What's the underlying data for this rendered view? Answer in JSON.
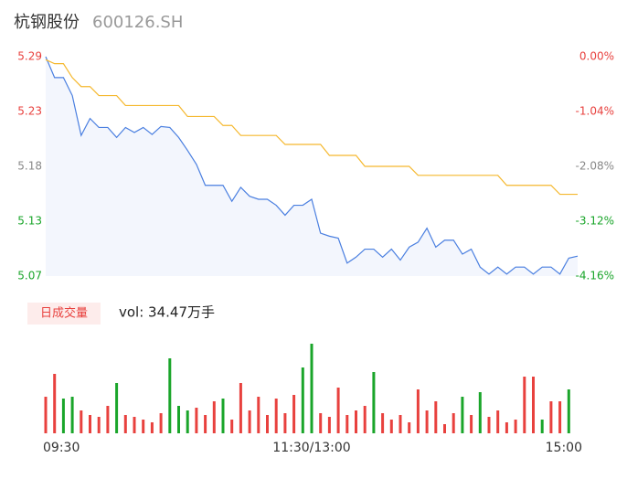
{
  "header": {
    "name": "杭钢股份",
    "code": "600126.SH"
  },
  "chart_data": [
    {
      "type": "line",
      "x": [
        0,
        4,
        8,
        12,
        16,
        20,
        24,
        28,
        32,
        36,
        40,
        44,
        48,
        52,
        56,
        60,
        64,
        68,
        72,
        76,
        80,
        84,
        88,
        92,
        96,
        100,
        104,
        108,
        112,
        116,
        120,
        124,
        128,
        132,
        136,
        140,
        144,
        148,
        152,
        156,
        160,
        164,
        168,
        172,
        176,
        180,
        184,
        188,
        192,
        196,
        200,
        204,
        208,
        212,
        216,
        220,
        224,
        228,
        232,
        236,
        240
      ],
      "xlim": [
        0,
        240
      ],
      "series": [
        {
          "color": "#4a7fe0",
          "values": [
            5.29,
            5.269,
            5.269,
            5.251,
            5.211,
            5.228,
            5.219,
            5.219,
            5.209,
            5.219,
            5.214,
            5.219,
            5.212,
            5.22,
            5.219,
            5.209,
            5.196,
            5.182,
            5.161,
            5.161,
            5.161,
            5.145,
            5.159,
            5.15,
            5.147,
            5.147,
            5.141,
            5.131,
            5.141,
            5.141,
            5.147,
            5.113,
            5.11,
            5.108,
            5.083,
            5.089,
            5.097,
            5.097,
            5.089,
            5.097,
            5.086,
            5.099,
            5.104,
            5.118,
            5.099,
            5.106,
            5.106,
            5.092,
            5.097,
            5.079,
            5.072,
            5.079,
            5.072,
            5.079,
            5.079,
            5.072,
            5.079,
            5.079,
            5.072,
            5.088,
            5.09
          ]
        },
        {
          "color": "#f5b82e",
          "values": [
            5.287,
            5.283,
            5.283,
            5.269,
            5.26,
            5.26,
            5.251,
            5.251,
            5.251,
            5.241,
            5.241,
            5.241,
            5.241,
            5.241,
            5.241,
            5.241,
            5.23,
            5.23,
            5.23,
            5.23,
            5.221,
            5.221,
            5.211,
            5.211,
            5.211,
            5.211,
            5.211,
            5.202,
            5.202,
            5.202,
            5.202,
            5.202,
            5.191,
            5.191,
            5.191,
            5.191,
            5.18,
            5.18,
            5.18,
            5.18,
            5.18,
            5.18,
            5.171,
            5.171,
            5.171,
            5.171,
            5.171,
            5.171,
            5.171,
            5.171,
            5.171,
            5.171,
            5.161,
            5.161,
            5.161,
            5.161,
            5.161,
            5.161,
            5.152,
            5.152,
            5.152
          ]
        }
      ],
      "area_color": "#f3f6fd",
      "ylim": [
        5.07,
        5.29
      ],
      "yticks": [
        5.29,
        {
          "value": 5.235,
          "label": "5.23"
        },
        5.18,
        {
          "value": 5.125,
          "label": "5.13"
        },
        5.07
      ],
      "y2lim": [
        0,
        -4.16
      ],
      "y2ticks": [
        {
          "value": 0,
          "label": "0.00%"
        },
        {
          "value": -1.04,
          "label": "-1.04%"
        },
        {
          "value": -2.08,
          "label": "-2.08%"
        },
        {
          "value": -3.12,
          "label": "-3.12%"
        },
        {
          "value": -4.16,
          "label": "-4.16%"
        }
      ],
      "tick_colors": [
        "#e8413e",
        "#e8413e",
        "#888888",
        "#1aa52a",
        "#1aa52a"
      ]
    },
    {
      "type": "bar",
      "legend": "日成交量",
      "volume_text": "vol: 34.47万手",
      "x": [
        0,
        4,
        8,
        12,
        16,
        20,
        24,
        28,
        32,
        36,
        40,
        44,
        48,
        52,
        56,
        60,
        64,
        68,
        72,
        76,
        80,
        84,
        88,
        92,
        96,
        100,
        104,
        108,
        112,
        116,
        120,
        124,
        128,
        132,
        136,
        140,
        144,
        148,
        152,
        156,
        160,
        164,
        168,
        172,
        176,
        180,
        184,
        188,
        192,
        196,
        200,
        204,
        208,
        212,
        216,
        220,
        224,
        228,
        232,
        236
      ],
      "values": [
        40,
        65,
        38,
        40,
        25,
        20,
        18,
        30,
        55,
        20,
        18,
        15,
        12,
        22,
        82,
        30,
        25,
        28,
        20,
        35,
        38,
        15,
        55,
        25,
        40,
        20,
        38,
        22,
        42,
        72,
        98,
        22,
        18,
        50,
        20,
        25,
        30,
        67,
        22,
        15,
        20,
        12,
        48,
        25,
        35,
        10,
        22,
        40,
        20,
        45,
        18,
        25,
        12,
        15,
        62,
        62,
        15,
        35,
        35,
        48
      ],
      "bar_colors": [
        "#e8413e",
        "#e8413e",
        "#1aa52a",
        "#1aa52a",
        "#e8413e",
        "#e8413e",
        "#e8413e",
        "#e8413e",
        "#1aa52a",
        "#e8413e",
        "#e8413e",
        "#e8413e",
        "#e8413e",
        "#e8413e",
        "#1aa52a",
        "#1aa52a",
        "#1aa52a",
        "#e8413e",
        "#e8413e",
        "#e8413e",
        "#1aa52a",
        "#e8413e",
        "#e8413e",
        "#e8413e",
        "#e8413e",
        "#e8413e",
        "#e8413e",
        "#e8413e",
        "#e8413e",
        "#1aa52a",
        "#1aa52a",
        "#e8413e",
        "#e8413e",
        "#e8413e",
        "#e8413e",
        "#e8413e",
        "#e8413e",
        "#1aa52a",
        "#e8413e",
        "#e8413e",
        "#e8413e",
        "#e8413e",
        "#e8413e",
        "#e8413e",
        "#e8413e",
        "#e8413e",
        "#e8413e",
        "#1aa52a",
        "#e8413e",
        "#1aa52a",
        "#e8413e",
        "#e8413e",
        "#e8413e",
        "#e8413e",
        "#e8413e",
        "#e8413e",
        "#1aa52a",
        "#e8413e",
        "#e8413e",
        "#1aa52a"
      ],
      "ylim": [
        0,
        100
      ],
      "xlim": [
        0,
        240
      ],
      "xticks": [
        {
          "value": 0,
          "label": "09:30"
        },
        {
          "value": 120,
          "label": "11:30/13:00"
        },
        {
          "value": 240,
          "label": "15:00"
        }
      ]
    }
  ]
}
